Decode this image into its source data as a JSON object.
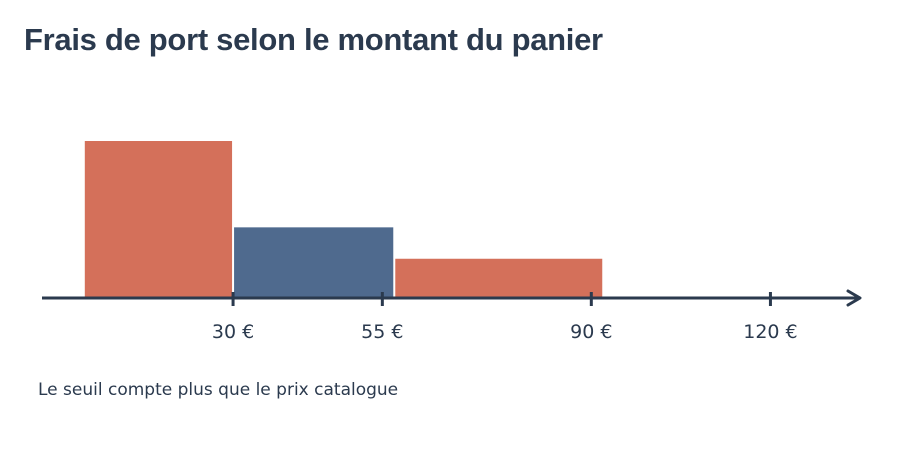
{
  "chart_data": {
    "type": "bar",
    "title": "Frais de port selon le montant du panier",
    "subtitle": "",
    "xlabel": "",
    "ylabel": "",
    "annotation": "Le seuil compte plus que le prix catalogue",
    "x_ticks": [
      {
        "value": 30,
        "label": "30 €"
      },
      {
        "value": 55,
        "label": "55 €"
      },
      {
        "value": 90,
        "label": "90 €"
      },
      {
        "value": 120,
        "label": "120 €"
      }
    ],
    "bars": [
      {
        "x_start": 5,
        "x_end": 30,
        "value": 100,
        "color": "#d4705a"
      },
      {
        "x_start": 30,
        "x_end": 57,
        "value": 45,
        "color": "#4f6a8e"
      },
      {
        "x_start": 57,
        "x_end": 92,
        "value": 25,
        "color": "#d4705a"
      }
    ],
    "xlim": [
      -2,
      135
    ],
    "ylim": [
      0,
      100
    ],
    "grid": false,
    "legend": "none",
    "colors": {
      "accent": "#d4705a",
      "highlight": "#4f6a8e",
      "axis": "#2b3a4e"
    }
  }
}
